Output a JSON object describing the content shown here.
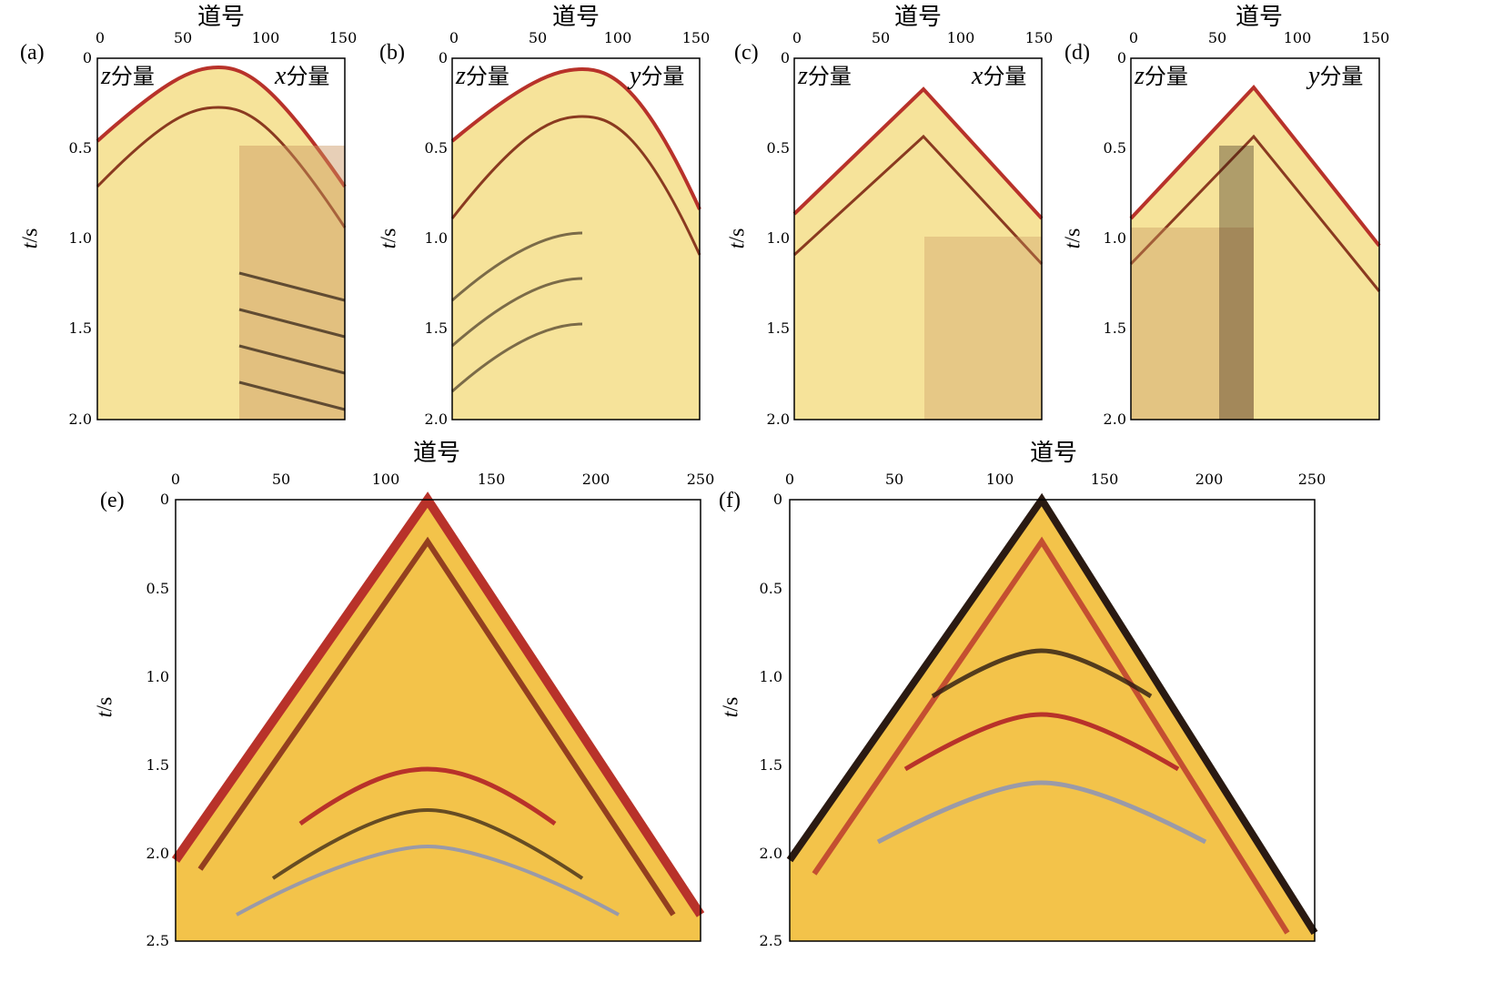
{
  "figure": {
    "panels": [
      {
        "id": "a",
        "label": "(a)",
        "xlabel": "道号",
        "ylabel_var": "t",
        "ylabel_unit": "/s",
        "xticks": [
          "0",
          "50",
          "100",
          "150"
        ],
        "yticks": [
          "0",
          "0.5",
          "1.0",
          "1.5",
          "2.0"
        ],
        "left_component": "z",
        "right_component": "x",
        "component_suffix": "分量",
        "xlim": [
          0,
          150
        ],
        "ylim": [
          0,
          2.0
        ]
      },
      {
        "id": "b",
        "label": "(b)",
        "xlabel": "道号",
        "ylabel_var": "t",
        "ylabel_unit": "/s",
        "xticks": [
          "0",
          "50",
          "100",
          "150"
        ],
        "yticks": [
          "0",
          "0.5",
          "1.0",
          "1.5",
          "2.0"
        ],
        "left_component": "z",
        "right_component": "y",
        "component_suffix": "分量",
        "xlim": [
          0,
          150
        ],
        "ylim": [
          0,
          2.0
        ]
      },
      {
        "id": "c",
        "label": "(c)",
        "xlabel": "道号",
        "ylabel_var": "t",
        "ylabel_unit": "/s",
        "xticks": [
          "0",
          "50",
          "100",
          "150"
        ],
        "yticks": [
          "0",
          "0.5",
          "1.0",
          "1.5",
          "2.0"
        ],
        "left_component": "z",
        "right_component": "x",
        "component_suffix": "分量",
        "xlim": [
          0,
          150
        ],
        "ylim": [
          0,
          2.0
        ]
      },
      {
        "id": "d",
        "label": "(d)",
        "xlabel": "道号",
        "ylabel_var": "t",
        "ylabel_unit": "/s",
        "xticks": [
          "0",
          "50",
          "100",
          "150"
        ],
        "yticks": [
          "0",
          "0.5",
          "1.0",
          "1.5",
          "2.0"
        ],
        "left_component": "z",
        "right_component": "y",
        "component_suffix": "分量",
        "xlim": [
          0,
          150
        ],
        "ylim": [
          0,
          2.0
        ]
      },
      {
        "id": "e",
        "label": "(e)",
        "xlabel": "道号",
        "ylabel_var": "t",
        "ylabel_unit": "/s",
        "xticks": [
          "0",
          "50",
          "100",
          "150",
          "200",
          "250"
        ],
        "yticks": [
          "0",
          "0.5",
          "1.0",
          "1.5",
          "2.0",
          "2.5"
        ],
        "xlim": [
          0,
          250
        ],
        "ylim": [
          0,
          2.5
        ]
      },
      {
        "id": "f",
        "label": "(f)",
        "xlabel": "道号",
        "ylabel_var": "t",
        "ylabel_unit": "/s",
        "xticks": [
          "0",
          "50",
          "100",
          "150",
          "200",
          "250"
        ],
        "yticks": [
          "0",
          "0.5",
          "1.0",
          "1.5",
          "2.0",
          "2.5"
        ],
        "xlim": [
          0,
          250
        ],
        "ylim": [
          0,
          2.5
        ]
      }
    ],
    "colors": {
      "background": "#fdf3a6",
      "strong": "#b8322a",
      "dark": "#2a1a12",
      "mid": "#e8a23a",
      "cool": "#9a9aa8"
    }
  }
}
